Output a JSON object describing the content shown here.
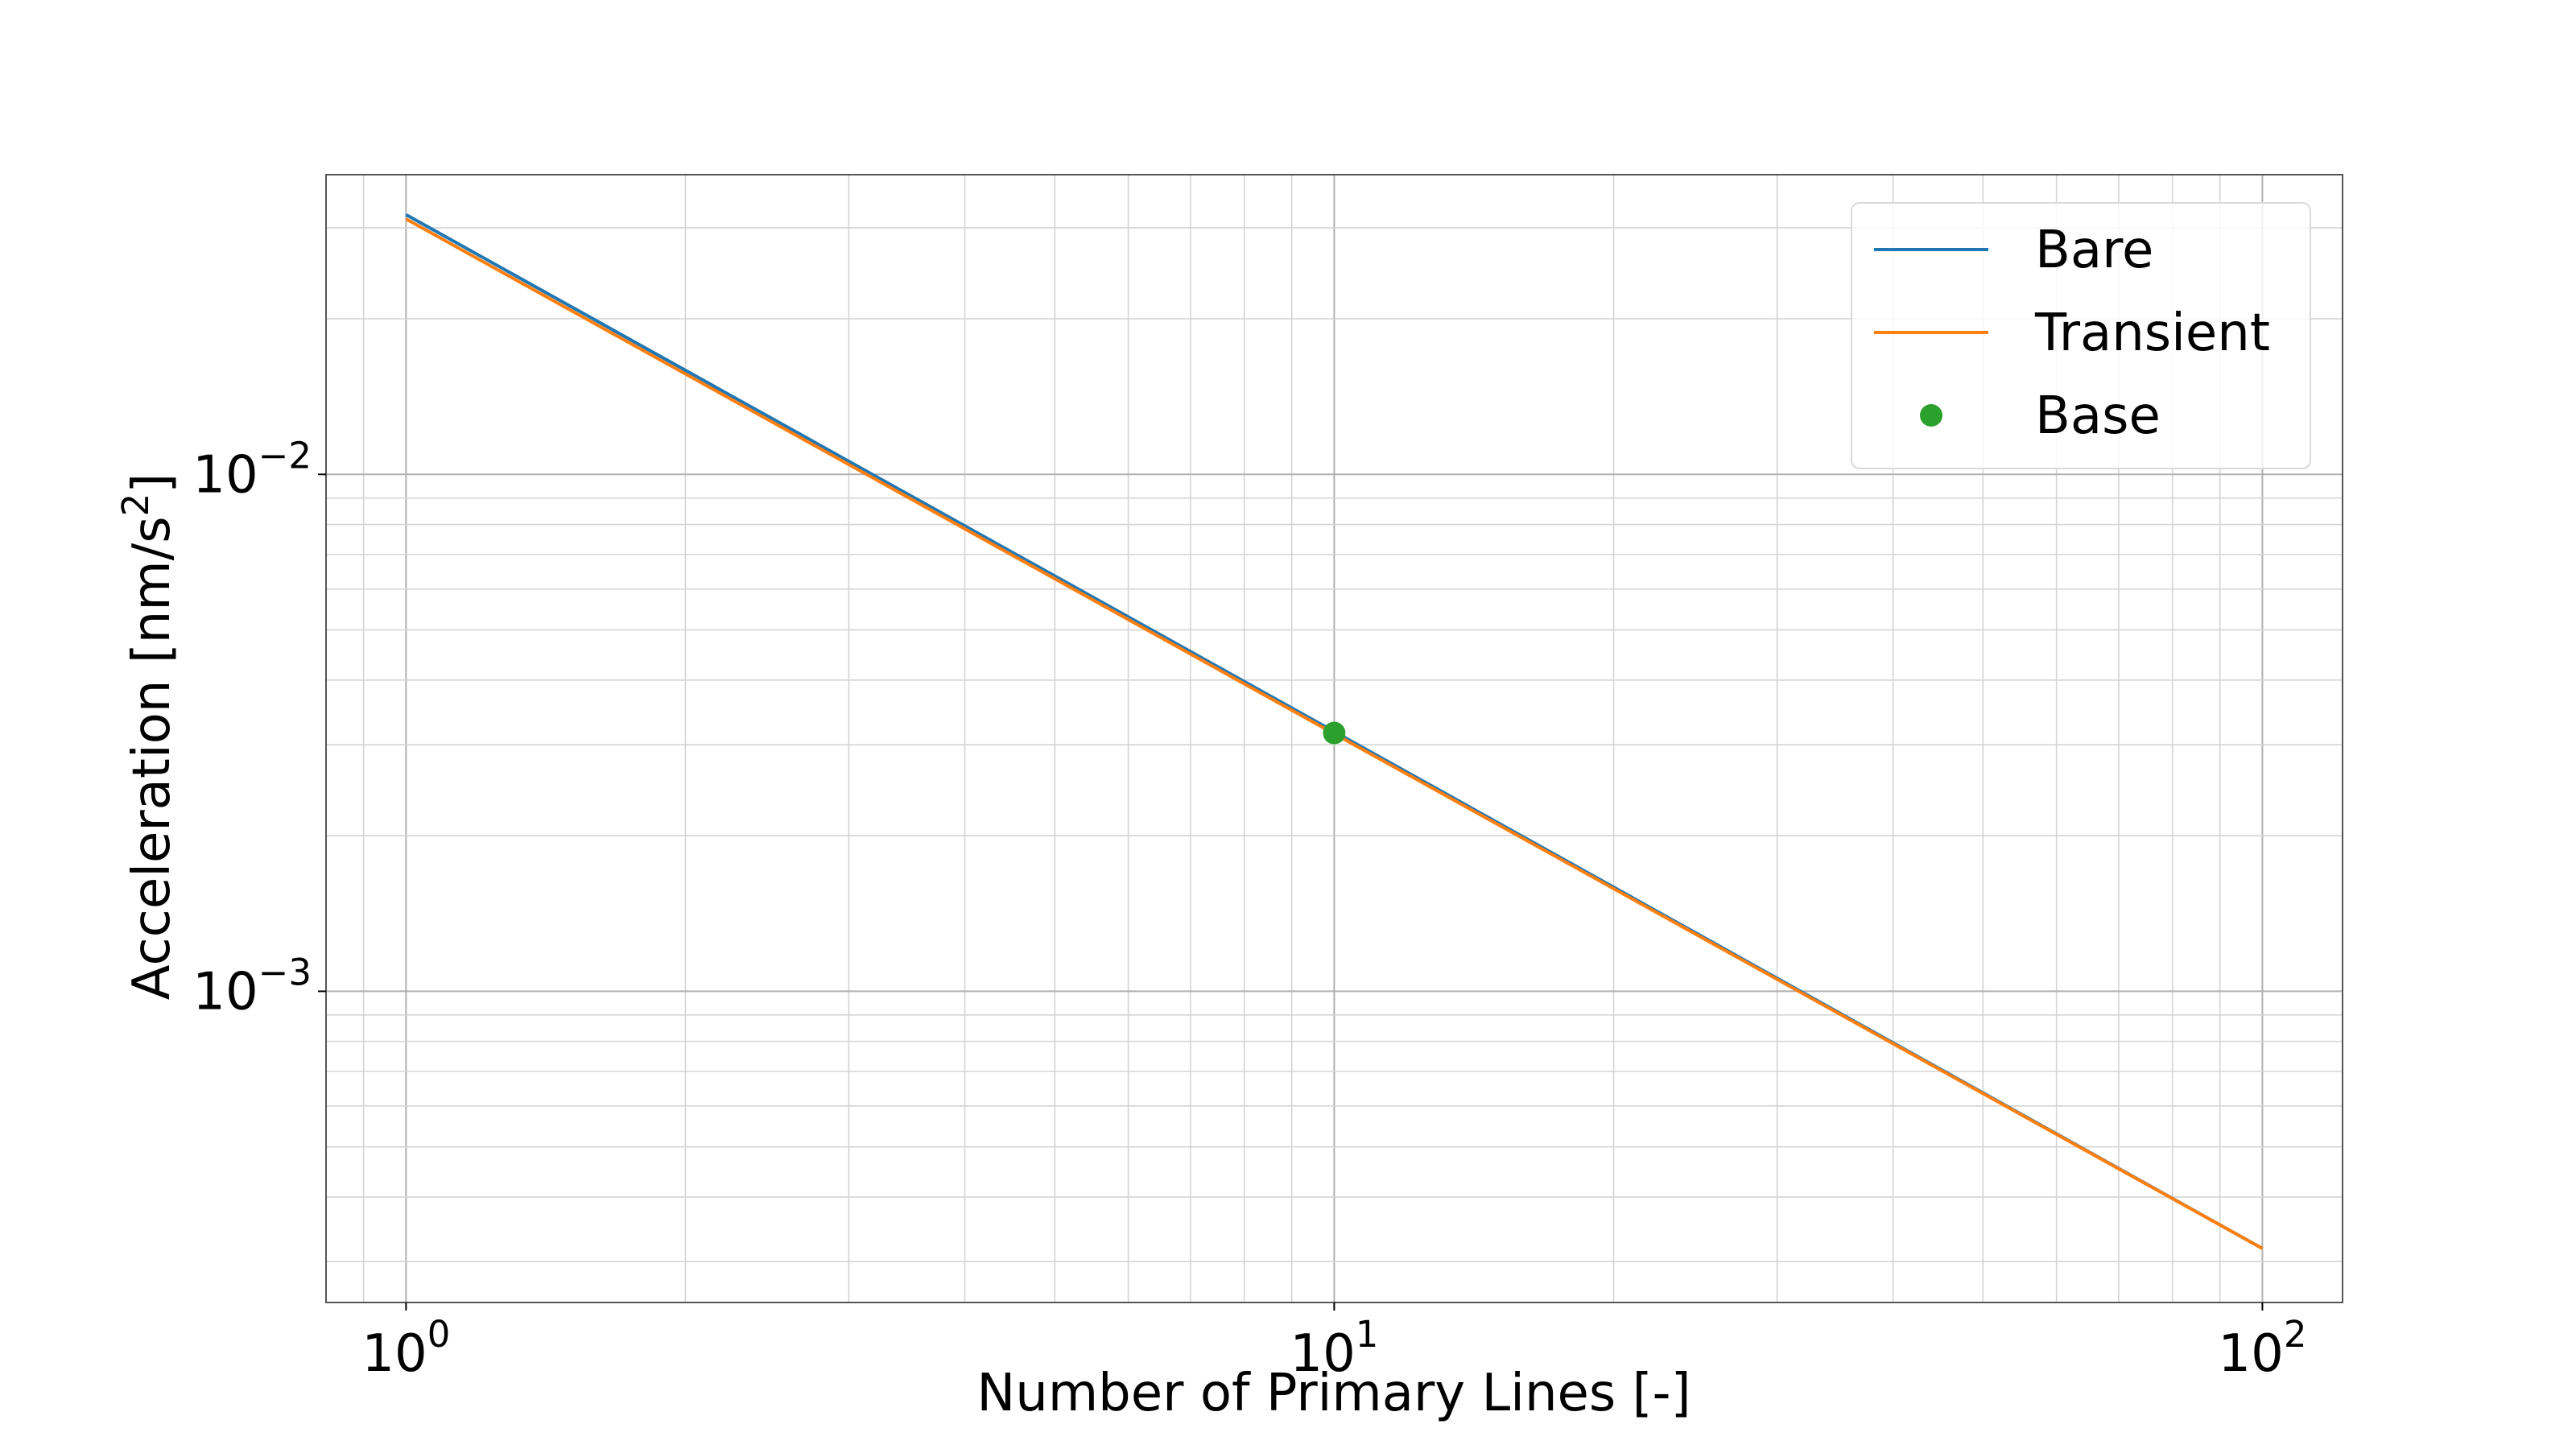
{
  "chart_data": {
    "type": "line",
    "xscale": "log",
    "yscale": "log",
    "xlim": [
      0.82,
      122
    ],
    "ylim": [
      0.00025,
      0.038
    ],
    "xlabel": "Number of Primary Lines [-]",
    "ylabel_main": "Acceleration [nm/s",
    "ylabel_sup": "2",
    "ylabel_close": "]",
    "grid": true,
    "grid_minor": true,
    "legend_position": "upper right",
    "x_ticks": [
      {
        "value": 1,
        "base": "10",
        "exp": "0"
      },
      {
        "value": 10,
        "base": "10",
        "exp": "1"
      },
      {
        "value": 100,
        "base": "10",
        "exp": "2"
      }
    ],
    "y_ticks": [
      {
        "value": 0.01,
        "base": "10",
        "exp": "−2"
      },
      {
        "value": 0.001,
        "base": "10",
        "exp": "−3"
      }
    ],
    "series": [
      {
        "name": "Bare",
        "kind": "line",
        "color": "#1f77b4",
        "x": [
          1,
          100
        ],
        "y": [
          0.0318,
          0.000318
        ]
      },
      {
        "name": "Transient",
        "kind": "line",
        "color": "#ff7f0e",
        "x": [
          1,
          100
        ],
        "y": [
          0.0312,
          0.000318
        ]
      },
      {
        "name": "Base",
        "kind": "marker",
        "color": "#2ca02c",
        "x": [
          10
        ],
        "y": [
          0.00316
        ]
      }
    ]
  }
}
